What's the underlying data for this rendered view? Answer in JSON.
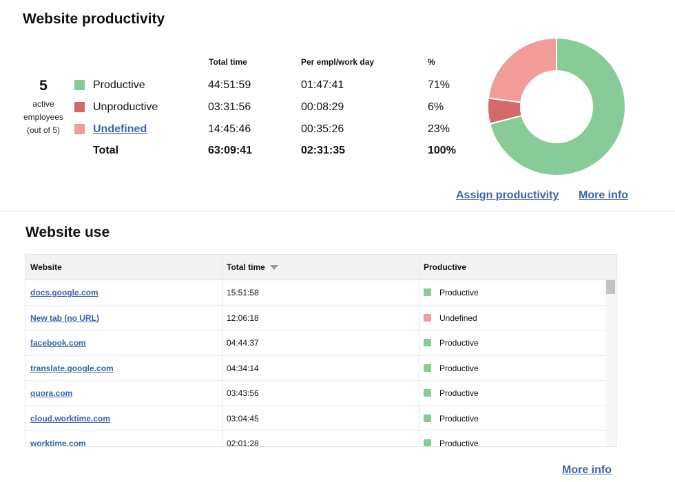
{
  "colors": {
    "productive": "#86cb98",
    "unproductive": "#d4696a",
    "undefined": "#f19c98",
    "link": "#3a64a5"
  },
  "productivity": {
    "title": "Website productivity",
    "employees": {
      "count": "5",
      "line1": "active",
      "line2": "employees",
      "line3": "(out of 5)"
    },
    "headers": {
      "total_time": "Total time",
      "per_empl": "Per empl/work day",
      "percent": "%"
    },
    "rows": [
      {
        "label": "Productive",
        "total": "44:51:59",
        "per_day": "01:47:41",
        "percent": "71%"
      },
      {
        "label": "Unproductive",
        "total": "03:31:56",
        "per_day": "00:08:29",
        "percent": "6%"
      },
      {
        "label": "Undefined",
        "total": "14:45:46",
        "per_day": "00:35:26",
        "percent": "23%"
      }
    ],
    "total": {
      "label": "Total",
      "total": "63:09:41",
      "per_day": "02:31:35",
      "percent": "100%"
    },
    "links": {
      "assign": "Assign productivity",
      "more_info": "More info"
    }
  },
  "chart_data": {
    "type": "pie",
    "donut": true,
    "categories": [
      "Productive",
      "Unproductive",
      "Undefined"
    ],
    "values": [
      71,
      6,
      23
    ],
    "colors": [
      "#86cb98",
      "#d4696a",
      "#f19c98"
    ],
    "start_angle_deg": -90
  },
  "website_use": {
    "title": "Website use",
    "headers": {
      "website": "Website",
      "total_time": "Total time",
      "productive": "Productive"
    },
    "rows": [
      {
        "site": "docs.google.com",
        "time": "15:51:58",
        "status": "Productive",
        "color": "#86cb98"
      },
      {
        "site": "New tab (no URL)",
        "time": "12:06:18",
        "status": "Undefined",
        "color": "#f19c98"
      },
      {
        "site": "facebook.com",
        "time": "04:44:37",
        "status": "Productive",
        "color": "#86cb98"
      },
      {
        "site": "translate.google.com",
        "time": "04:34:14",
        "status": "Productive",
        "color": "#86cb98"
      },
      {
        "site": "quora.com",
        "time": "03:43:56",
        "status": "Productive",
        "color": "#86cb98"
      },
      {
        "site": "cloud.worktime.com",
        "time": "03:04:45",
        "status": "Productive",
        "color": "#86cb98"
      },
      {
        "site": "worktime.com",
        "time": "02:01:28",
        "status": "Productive",
        "color": "#86cb98"
      }
    ],
    "more_info": "More info"
  }
}
